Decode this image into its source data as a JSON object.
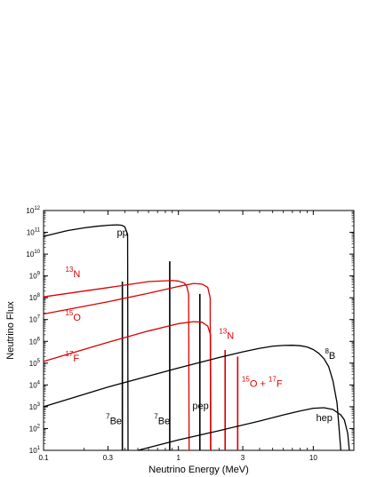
{
  "chart_data": {
    "type": "line",
    "title": "",
    "xlabel": "Neutrino Energy (MeV)",
    "ylabel": "Neutrino Flux",
    "xscale": "log",
    "yscale": "log",
    "xlim": [
      0.1,
      20
    ],
    "ylim": [
      10,
      1000000000000.0
    ],
    "x_ticks": [
      0.1,
      0.3,
      1,
      3,
      10
    ],
    "x_tick_labels": [
      "0.1",
      "0.3",
      "1",
      "3",
      "10"
    ],
    "y_ticks": [
      10.0,
      100.0,
      1000.0,
      10000.0,
      100000.0,
      1000000.0,
      10000000.0,
      100000000.0,
      1000000000.0,
      10000000000.0,
      100000000000.0,
      1000000000000.0
    ],
    "y_tick_labels": [
      {
        "base": "10",
        "exp": "1"
      },
      {
        "base": "10",
        "exp": "2"
      },
      {
        "base": "10",
        "exp": "3"
      },
      {
        "base": "10",
        "exp": "4"
      },
      {
        "base": "10",
        "exp": "5"
      },
      {
        "base": "10",
        "exp": "6"
      },
      {
        "base": "10",
        "exp": "7"
      },
      {
        "base": "10",
        "exp": "8"
      },
      {
        "base": "10",
        "exp": "9"
      },
      {
        "base": "10",
        "exp": "10"
      },
      {
        "base": "10",
        "exp": "11"
      },
      {
        "base": "10",
        "exp": "12"
      }
    ],
    "grid": false,
    "colors": {
      "black_series": "#000000",
      "red_series": "#dd0000"
    },
    "series": [
      {
        "name": "pp",
        "color": "#000000",
        "x": [
          0.1,
          0.15,
          0.2,
          0.25,
          0.3,
          0.35,
          0.38,
          0.4,
          0.42,
          0.423
        ],
        "y": [
          65000000000.0,
          120000000000.0,
          160000000000.0,
          190000000000.0,
          210000000000.0,
          220000000000.0,
          210000000000.0,
          180000000000.0,
          80000000000.0,
          10
        ]
      },
      {
        "name": "13N",
        "color": "#dd0000",
        "x": [
          0.1,
          0.3,
          0.6,
          0.9,
          1.0,
          1.1,
          1.15,
          1.19,
          1.2
        ],
        "y": [
          110000000.0,
          290000000.0,
          550000000.0,
          620000000.0,
          580000000.0,
          480000000.0,
          350000000.0,
          150000000.0,
          10
        ]
      },
      {
        "name": "15O",
        "color": "#dd0000",
        "x": [
          0.1,
          0.3,
          0.6,
          1.0,
          1.3,
          1.5,
          1.65,
          1.72,
          1.73
        ],
        "y": [
          18000000.0,
          65000000.0,
          160000000.0,
          330000000.0,
          450000000.0,
          420000000.0,
          300000000.0,
          100000000.0,
          10
        ]
      },
      {
        "name": "17F",
        "color": "#dd0000",
        "x": [
          0.1,
          0.3,
          0.6,
          1.0,
          1.3,
          1.5,
          1.65,
          1.73,
          1.74
        ],
        "y": [
          120000.0,
          900000.0,
          3000000.0,
          6500000.0,
          8000000.0,
          7500000.0,
          5000000.0,
          2000000.0,
          10
        ]
      },
      {
        "name": "8B",
        "color": "#000000",
        "x": [
          0.1,
          0.3,
          1,
          2,
          3,
          4,
          5,
          6,
          7,
          8,
          9,
          10,
          11,
          12,
          13,
          14,
          15,
          16
        ],
        "y": [
          1000.0,
          8000.0,
          60000.0,
          180000.0,
          330000.0,
          480000.0,
          600000.0,
          650000.0,
          660000.0,
          630000.0,
          550000.0,
          420000.0,
          280000.0,
          160000.0,
          70000.0,
          15000.0,
          1500.0,
          10
        ]
      },
      {
        "name": "hep",
        "color": "#000000",
        "x": [
          0.5,
          1,
          2,
          4,
          6,
          8,
          10,
          12,
          14,
          16,
          17,
          18,
          18.5
        ],
        "y": [
          10,
          30,
          80,
          220,
          420,
          640,
          850,
          900,
          750,
          420,
          250,
          60,
          10
        ]
      }
    ],
    "lines": [
      {
        "name": "7Be",
        "x": 0.384,
        "y": 550000000.0,
        "color": "#000000"
      },
      {
        "name": "7Be",
        "x": 0.862,
        "y": 4700000000.0,
        "color": "#000000"
      },
      {
        "name": "pep",
        "x": 1.442,
        "y": 150000000.0,
        "color": "#000000"
      },
      {
        "name": "13N",
        "x": 2.22,
        "y": 400000.0,
        "color": "#dd0000"
      },
      {
        "name": "15O+17F",
        "x": 2.75,
        "y": 200000.0,
        "color": "#dd0000"
      }
    ],
    "annotations": [
      {
        "id": "pp",
        "parts": [
          {
            "t": "pp"
          }
        ],
        "x": 0.35,
        "y": 70000000000.0,
        "color": "#000000"
      },
      {
        "id": "N13",
        "parts": [
          {
            "t": "13",
            "sup": true
          },
          {
            "t": "N"
          }
        ],
        "x": 0.145,
        "y": 900000000.0,
        "color": "#dd0000"
      },
      {
        "id": "O15",
        "parts": [
          {
            "t": "15",
            "sup": true
          },
          {
            "t": "O"
          }
        ],
        "x": 0.145,
        "y": 9000000.0,
        "color": "#dd0000"
      },
      {
        "id": "F17",
        "parts": [
          {
            "t": "17",
            "sup": true
          },
          {
            "t": "F"
          }
        ],
        "x": 0.145,
        "y": 120000.0,
        "color": "#dd0000"
      },
      {
        "id": "Be7a",
        "parts": [
          {
            "t": "7",
            "sup": true
          },
          {
            "t": "Be"
          }
        ],
        "x": 0.29,
        "y": 160.0,
        "color": "#000000"
      },
      {
        "id": "Be7b",
        "parts": [
          {
            "t": "7",
            "sup": true
          },
          {
            "t": "Be"
          }
        ],
        "x": 0.66,
        "y": 160.0,
        "color": "#000000"
      },
      {
        "id": "pep",
        "parts": [
          {
            "t": "pep"
          }
        ],
        "x": 1.27,
        "y": 800.0,
        "color": "#000000"
      },
      {
        "id": "N13b",
        "parts": [
          {
            "t": "13",
            "sup": true
          },
          {
            "t": "N"
          }
        ],
        "x": 2.0,
        "y": 1300000.0,
        "color": "#dd0000"
      },
      {
        "id": "O15F17",
        "parts": [
          {
            "t": "15",
            "sup": true
          },
          {
            "t": "O + "
          },
          {
            "t": "17",
            "sup": true
          },
          {
            "t": "F"
          }
        ],
        "x": 2.95,
        "y": 8000.0,
        "color": "#dd0000"
      },
      {
        "id": "B8",
        "parts": [
          {
            "t": "8",
            "sup": true
          },
          {
            "t": "B"
          }
        ],
        "x": 12.2,
        "y": 160000.0,
        "color": "#000000"
      },
      {
        "id": "hep",
        "parts": [
          {
            "t": "hep"
          }
        ],
        "x": 10.5,
        "y": 220.0,
        "color": "#000000"
      }
    ]
  }
}
